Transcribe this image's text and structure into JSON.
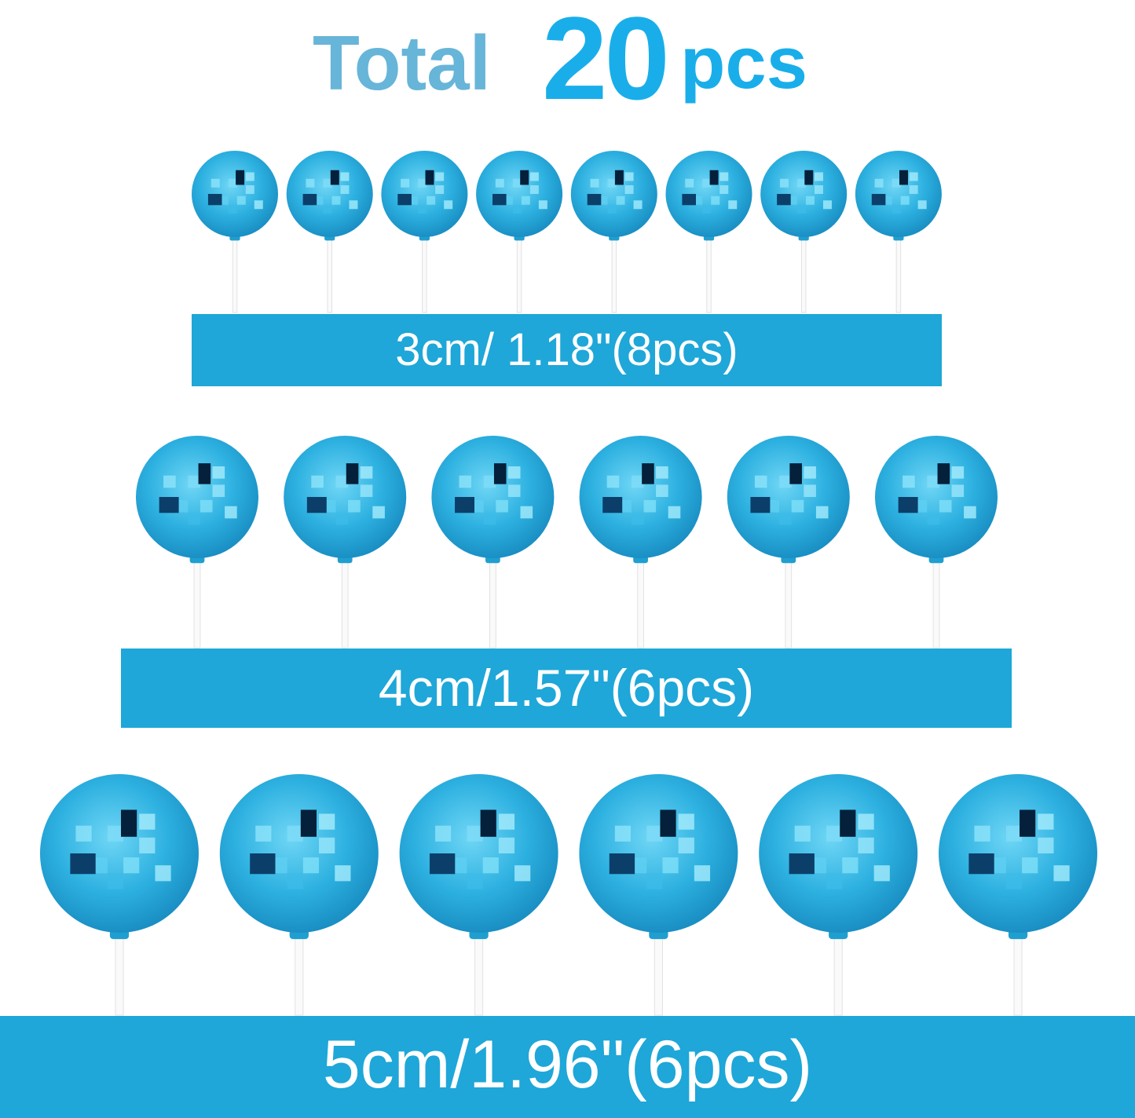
{
  "title": {
    "prefix": "Total",
    "number": "20",
    "unit": "pcs"
  },
  "colors": {
    "band": "#1ea7d8",
    "title_prefix": "#67b5d8",
    "title_number": "#19aeea",
    "ball": "#29b4e4"
  },
  "rows": [
    {
      "label": "3cm/ 1.18\"(8pcs)",
      "count": 8
    },
    {
      "label": "4cm/1.57\"(6pcs)",
      "count": 6
    },
    {
      "label": "5cm/1.96\"(6pcs)",
      "count": 6
    }
  ]
}
